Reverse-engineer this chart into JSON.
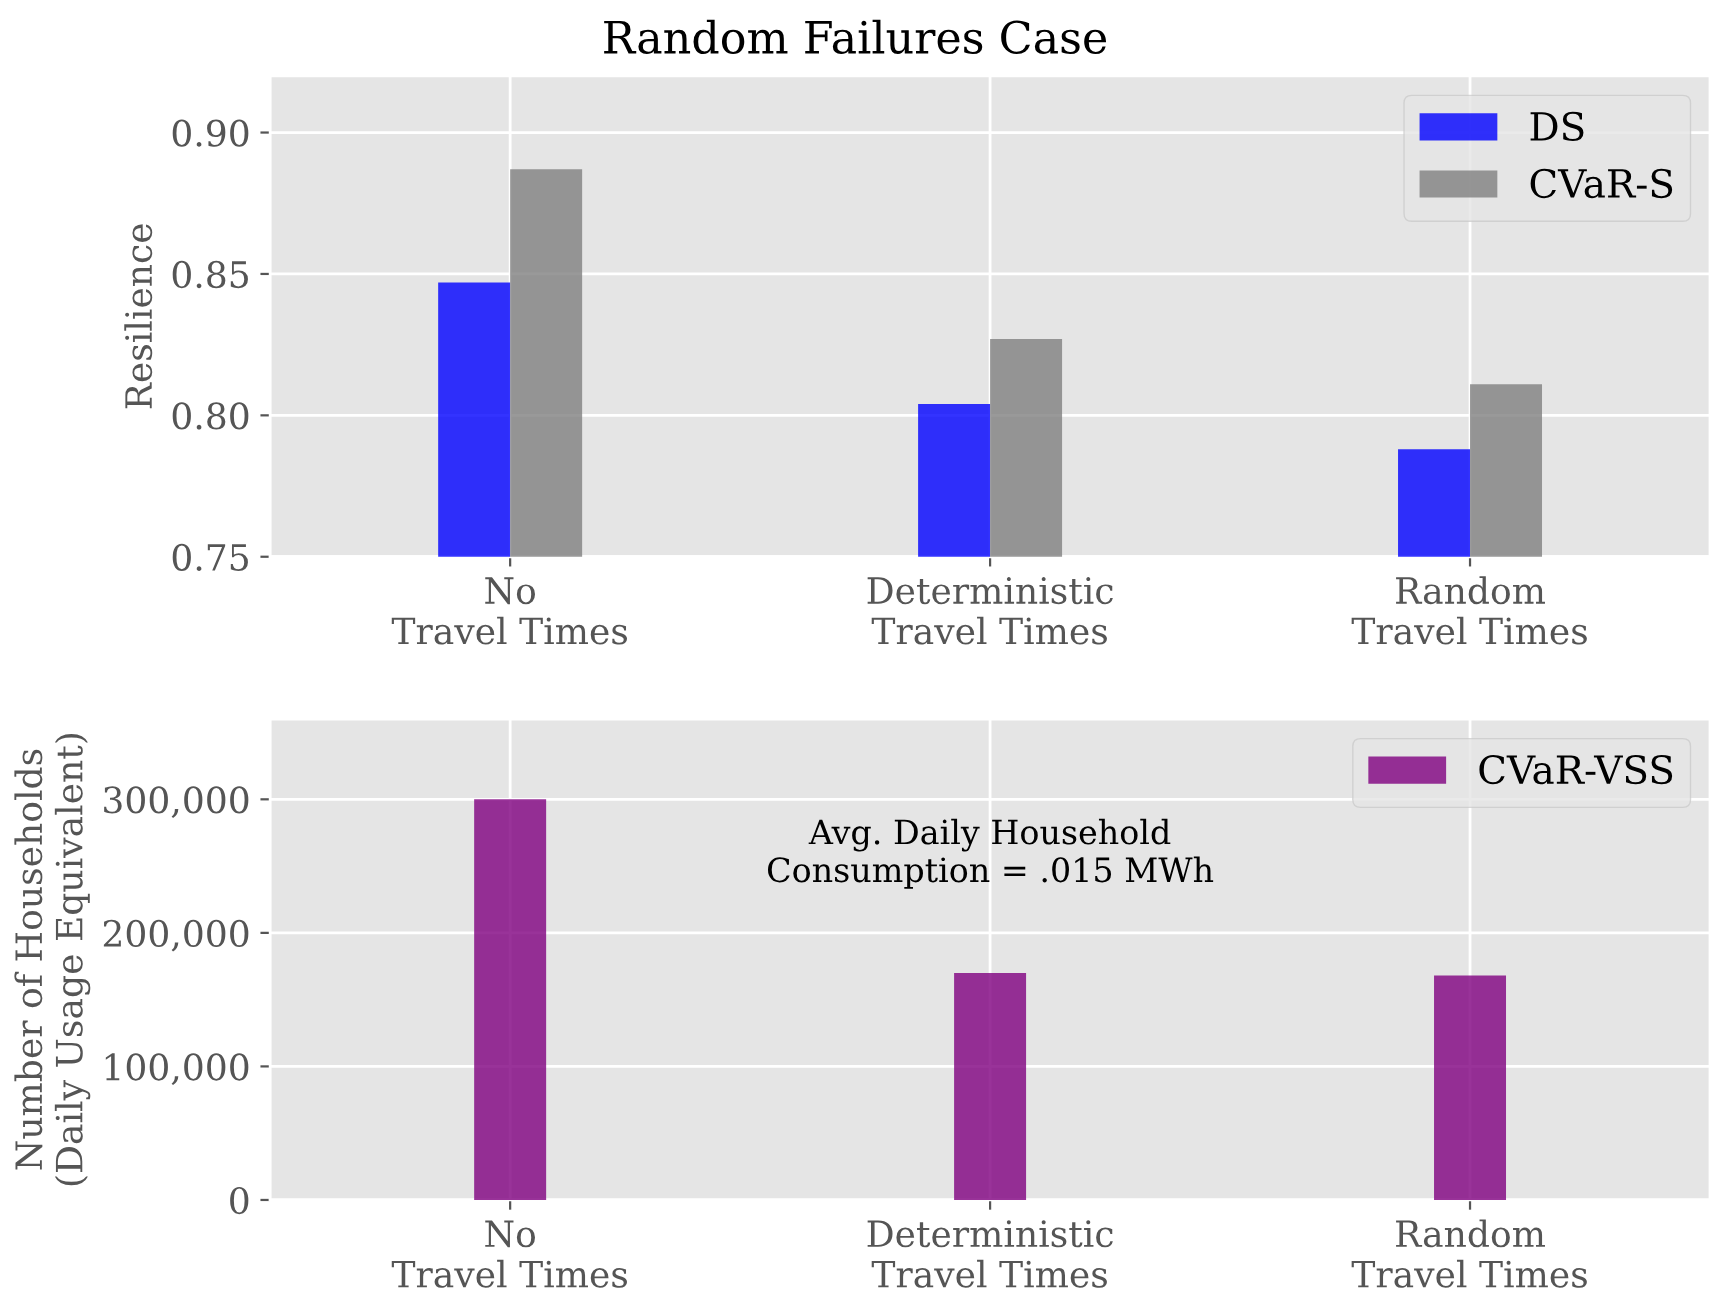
{
  "chart_data": [
    {
      "type": "bar",
      "title": "Random Failures Case",
      "ylabel": "Resilience",
      "categories": [
        "No\nTravel Times",
        "Deterministic\nTravel Times",
        "Random\nTravel Times"
      ],
      "series": [
        {
          "name": "DS",
          "color": "#0000ff",
          "values": [
            0.847,
            0.804,
            0.788
          ]
        },
        {
          "name": "CVaR-S",
          "color": "#808080",
          "values": [
            0.887,
            0.827,
            0.811
          ]
        }
      ],
      "ylim": [
        0.75,
        0.92
      ],
      "yticks": [
        {
          "value": 0.75,
          "label": "0.75"
        },
        {
          "value": 0.8,
          "label": "0.80"
        },
        {
          "value": 0.85,
          "label": "0.85"
        },
        {
          "value": 0.9,
          "label": "0.90"
        }
      ],
      "grid": true,
      "legend": "top right"
    },
    {
      "type": "bar",
      "ylabel": "Number of Households\n(Daily Usage Equivalent)",
      "categories": [
        "No\nTravel Times",
        "Deterministic\nTravel Times",
        "Random\nTravel Times"
      ],
      "series": [
        {
          "name": "CVaR-VSS",
          "color": "#800080",
          "values": [
            300000,
            170000,
            168000
          ]
        }
      ],
      "annotations": [
        "Avg. Daily Household\nConsumption = .015 MWh"
      ],
      "ylim": [
        0,
        360000
      ],
      "yticks": [
        0,
        {
          "value": 100000,
          "label": "100,000"
        },
        {
          "value": 200000,
          "label": "200,000"
        },
        {
          "value": 300000,
          "label": "300,000"
        }
      ],
      "grid": true,
      "legend": "top right"
    }
  ]
}
